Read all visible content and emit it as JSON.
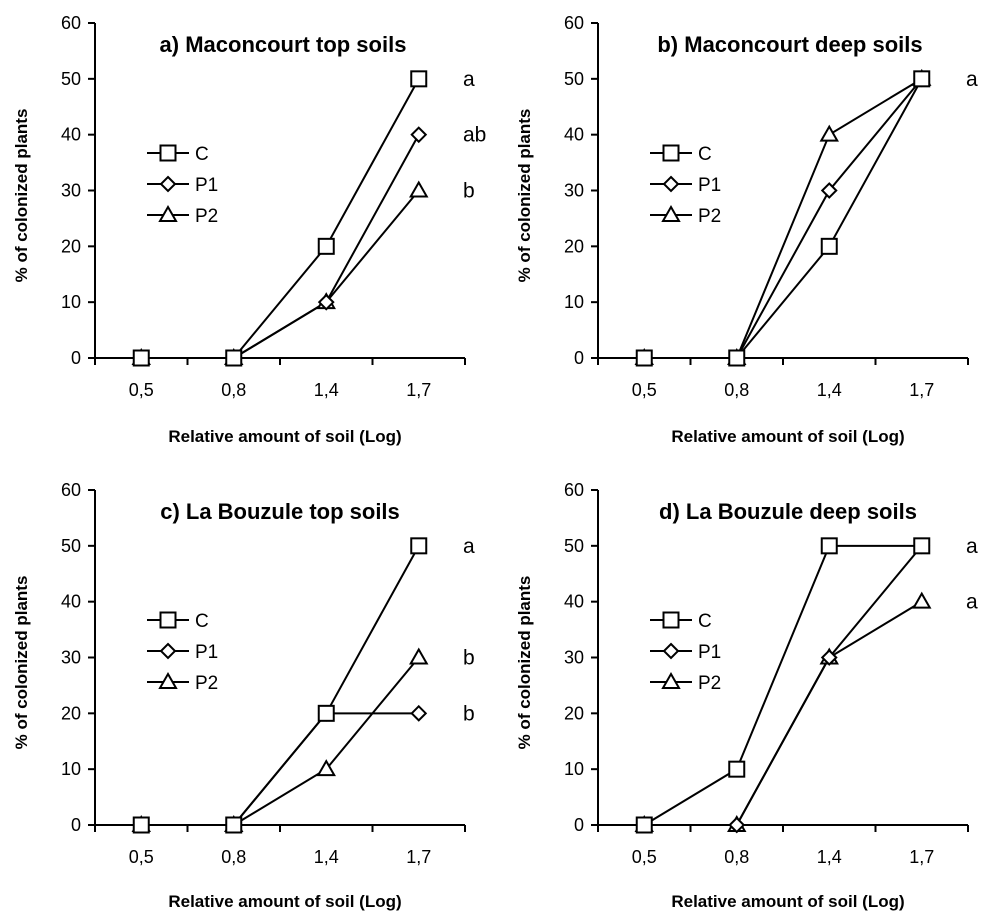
{
  "chart_data": [
    {
      "type": "line",
      "title": "a) Maconcourt top soils",
      "xlabel": "Relative amount of soil (Log)",
      "ylabel": "% of colonized plants",
      "categories": [
        "0,5",
        "0,8",
        "1,4",
        "1,7"
      ],
      "ylim": [
        0,
        60
      ],
      "yticks": [
        0,
        10,
        20,
        30,
        40,
        50,
        60
      ],
      "legend": "left",
      "series": [
        {
          "name": "C",
          "marker": "square",
          "values": [
            0,
            0,
            20,
            50
          ]
        },
        {
          "name": "P1",
          "marker": "diamond",
          "values": [
            0,
            0,
            10,
            40
          ]
        },
        {
          "name": "P2",
          "marker": "triangle",
          "values": [
            0,
            0,
            10,
            30
          ]
        }
      ],
      "annotations": [
        {
          "text": "a",
          "y": 50
        },
        {
          "text": "ab",
          "y": 40
        },
        {
          "text": "b",
          "y": 30
        }
      ]
    },
    {
      "type": "line",
      "title": "b) Maconcourt deep soils",
      "xlabel": "Relative amount of soil (Log)",
      "ylabel": "% of colonized plants",
      "categories": [
        "0,5",
        "0,8",
        "1,4",
        "1,7"
      ],
      "ylim": [
        0,
        60
      ],
      "yticks": [
        0,
        10,
        20,
        30,
        40,
        50,
        60
      ],
      "legend": "left",
      "series": [
        {
          "name": "C",
          "marker": "square",
          "values": [
            0,
            0,
            20,
            50
          ]
        },
        {
          "name": "P1",
          "marker": "diamond",
          "values": [
            0,
            0,
            30,
            50
          ]
        },
        {
          "name": "P2",
          "marker": "triangle",
          "values": [
            0,
            0,
            40,
            50
          ]
        }
      ],
      "annotations": [
        {
          "text": "a",
          "y": 50
        }
      ]
    },
    {
      "type": "line",
      "title": "c) La Bouzule top soils",
      "xlabel": "Relative amount of soil (Log)",
      "ylabel": "% of colonized plants",
      "categories": [
        "0,5",
        "0,8",
        "1,4",
        "1,7"
      ],
      "ylim": [
        0,
        60
      ],
      "yticks": [
        0,
        10,
        20,
        30,
        40,
        50,
        60
      ],
      "legend": "left",
      "series": [
        {
          "name": "C",
          "marker": "square",
          "values": [
            0,
            0,
            20,
            50
          ]
        },
        {
          "name": "P1",
          "marker": "diamond",
          "values": [
            0,
            0,
            20,
            20
          ]
        },
        {
          "name": "P2",
          "marker": "triangle",
          "values": [
            0,
            0,
            10,
            30
          ]
        }
      ],
      "annotations": [
        {
          "text": "a",
          "y": 50
        },
        {
          "text": "b",
          "y": 30
        },
        {
          "text": "b",
          "y": 20
        }
      ]
    },
    {
      "type": "line",
      "title": "d) La Bouzule deep soils",
      "xlabel": "Relative amount of soil (Log)",
      "ylabel": "% of colonized plants",
      "categories": [
        "0,5",
        "0,8",
        "1,4",
        "1,7"
      ],
      "ylim": [
        0,
        60
      ],
      "yticks": [
        0,
        10,
        20,
        30,
        40,
        50,
        60
      ],
      "legend": "left",
      "series": [
        {
          "name": "C",
          "marker": "square",
          "values": [
            0,
            10,
            50,
            50
          ]
        },
        {
          "name": "P1",
          "marker": "diamond",
          "values": [
            0,
            0,
            30,
            50
          ]
        },
        {
          "name": "P2",
          "marker": "triangle",
          "values": [
            0,
            0,
            30,
            40
          ]
        }
      ],
      "annotations": [
        {
          "text": "a",
          "y": 50
        },
        {
          "text": "a",
          "y": 40
        }
      ]
    }
  ]
}
